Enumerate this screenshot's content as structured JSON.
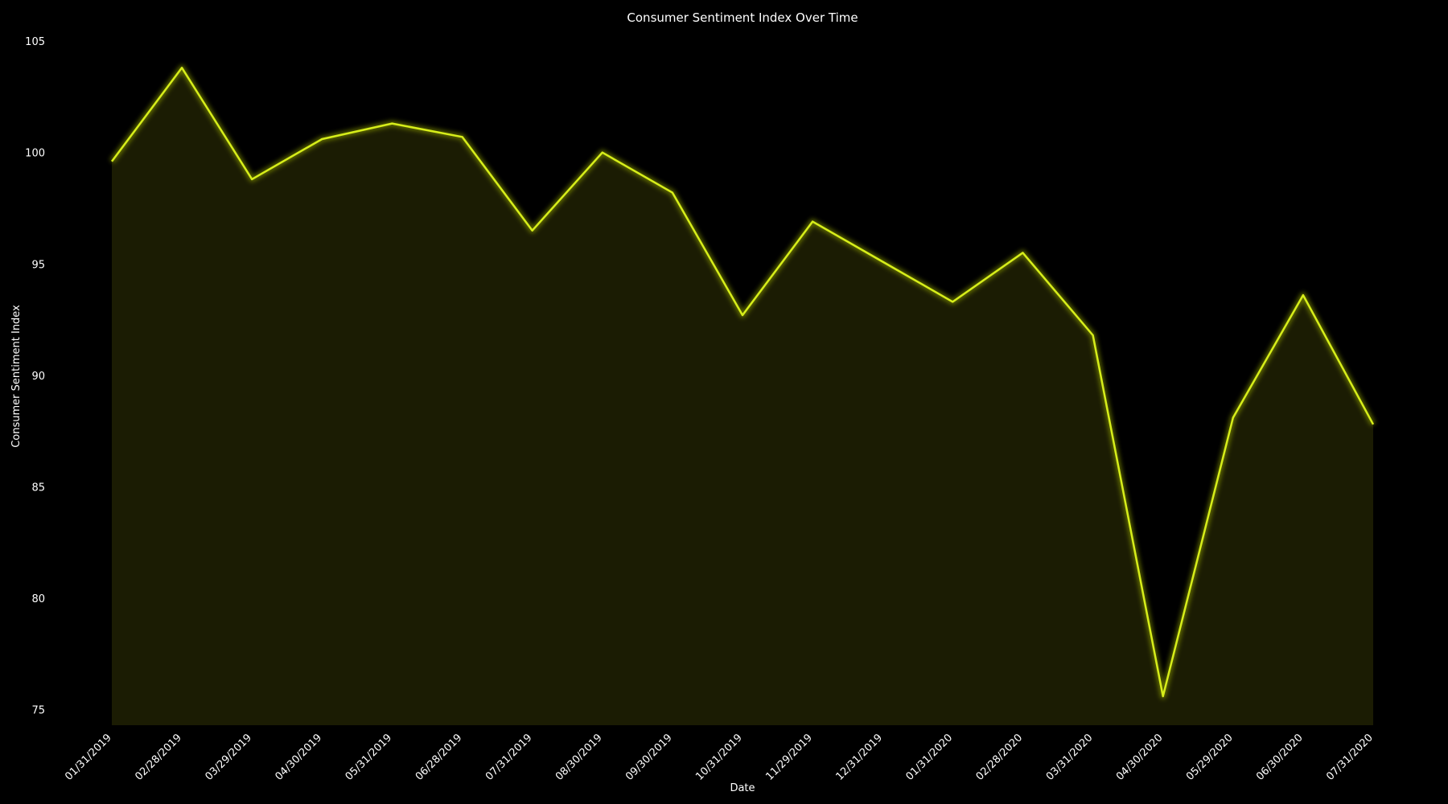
{
  "chart_data": {
    "type": "area",
    "title": "Consumer Sentiment Index Over Time",
    "xlabel": "Date",
    "ylabel": "Consumer Sentiment Index",
    "x": [
      "01/31/2019",
      "02/28/2019",
      "03/29/2019",
      "04/30/2019",
      "05/31/2019",
      "06/28/2019",
      "07/31/2019",
      "08/30/2019",
      "09/30/2019",
      "10/31/2019",
      "11/29/2019",
      "12/31/2019",
      "01/31/2020",
      "02/28/2020",
      "03/31/2020",
      "04/30/2020",
      "05/29/2020",
      "06/30/2020",
      "07/31/2020"
    ],
    "series": [
      {
        "values": [
          99.6,
          103.8,
          98.8,
          100.6,
          101.3,
          100.7,
          96.5,
          100.0,
          98.2,
          92.7,
          96.9,
          95.1,
          93.3,
          95.5,
          91.8,
          75.6,
          88.1,
          93.6,
          87.8
        ]
      }
    ],
    "ylim": [
      74.3,
      105.4
    ],
    "yticks": [
      "75",
      "80",
      "85",
      "90",
      "95",
      "100",
      "105"
    ],
    "grid": false,
    "line_color": "#d7ee1a",
    "glow_color": "#9eb000",
    "fill_color": "#1b1c03",
    "background_color": "#000000"
  }
}
